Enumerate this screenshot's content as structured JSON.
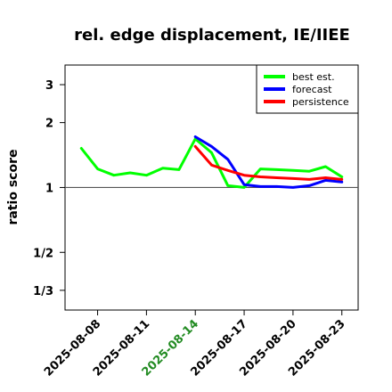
{
  "chart_data": {
    "type": "line",
    "title": "rel. edge displacement, IE/IIEE",
    "ylabel": "ratio score",
    "xlabel": "",
    "y_scale": "log",
    "ylim": [
      0.27,
      3.7
    ],
    "xlim": [
      "2025-08-06",
      "2025-08-24"
    ],
    "reference_line": 1,
    "yticks": [
      {
        "value": 3,
        "label": "3"
      },
      {
        "value": 2,
        "label": "2"
      },
      {
        "value": 1,
        "label": "1"
      },
      {
        "value": 0.5,
        "label": "1/2"
      },
      {
        "value": 0.3333,
        "label": "1/3"
      }
    ],
    "xticks": [
      {
        "date": "2025-08-08",
        "label": "2025-08-08",
        "color": "#000000"
      },
      {
        "date": "2025-08-11",
        "label": "2025-08-11",
        "color": "#000000"
      },
      {
        "date": "2025-08-14",
        "label": "2025-08-14",
        "color": "#228B22"
      },
      {
        "date": "2025-08-17",
        "label": "2025-08-17",
        "color": "#000000"
      },
      {
        "date": "2025-08-20",
        "label": "2025-08-20",
        "color": "#000000"
      },
      {
        "date": "2025-08-23",
        "label": "2025-08-23",
        "color": "#000000"
      }
    ],
    "legend_position": "top-right",
    "series": [
      {
        "name": "best est.",
        "color": "#00ff00",
        "x": [
          "2025-08-07",
          "2025-08-08",
          "2025-08-09",
          "2025-08-10",
          "2025-08-11",
          "2025-08-12",
          "2025-08-13",
          "2025-08-14",
          "2025-08-15",
          "2025-08-16",
          "2025-08-17",
          "2025-08-18",
          "2025-08-19",
          "2025-08-20",
          "2025-08-21",
          "2025-08-22",
          "2025-08-23"
        ],
        "y": [
          1.52,
          1.22,
          1.14,
          1.17,
          1.14,
          1.23,
          1.21,
          1.68,
          1.45,
          1.02,
          1.0,
          1.22,
          1.21,
          1.2,
          1.19,
          1.25,
          1.12
        ]
      },
      {
        "name": "forecast",
        "color": "#0000ff",
        "x": [
          "2025-08-14",
          "2025-08-15",
          "2025-08-16",
          "2025-08-17",
          "2025-08-18",
          "2025-08-19",
          "2025-08-20",
          "2025-08-21",
          "2025-08-22",
          "2025-08-23"
        ],
        "y": [
          1.72,
          1.55,
          1.35,
          1.03,
          1.01,
          1.01,
          1.0,
          1.02,
          1.08,
          1.06
        ]
      },
      {
        "name": "persistence",
        "color": "#ff0000",
        "x": [
          "2025-08-14",
          "2025-08-15",
          "2025-08-16",
          "2025-08-17",
          "2025-08-18",
          "2025-08-19",
          "2025-08-20",
          "2025-08-21",
          "2025-08-22",
          "2025-08-23"
        ],
        "y": [
          1.55,
          1.27,
          1.2,
          1.14,
          1.12,
          1.11,
          1.1,
          1.09,
          1.11,
          1.09
        ]
      }
    ]
  }
}
